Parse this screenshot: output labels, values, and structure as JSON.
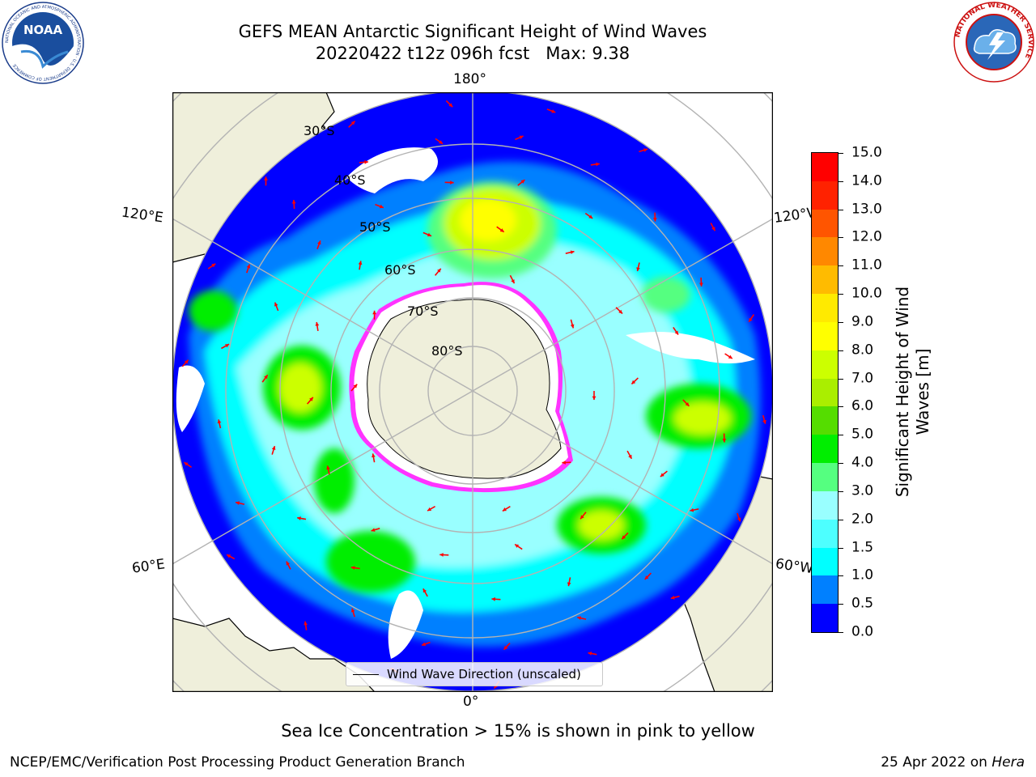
{
  "header": {
    "title_line1": "GEFS MEAN Antarctic Significant Height of Wind Waves",
    "title_line2": "20220422 t12z 096h fcst   Max: 9.38"
  },
  "logos": {
    "left": {
      "name": "noaa-logo",
      "text": "NOAA",
      "ring_text": "NATIONAL OCEANIC AND ATMOSPHERIC ADMINISTRATION · U.S. DEPARTMENT OF COMMERCE"
    },
    "right": {
      "name": "nws-logo",
      "ring_text": "NATIONAL WEATHER SERVICE"
    }
  },
  "map": {
    "projection": "south-polar-stereographic",
    "longitude_labels": [
      "180°",
      "120°E",
      "120°W",
      "60°E",
      "60°W",
      "0°"
    ],
    "latitude_labels": [
      "30°S",
      "40°S",
      "50°S",
      "60°S",
      "70°S",
      "80°S"
    ],
    "colors": {
      "land": "#efefdb",
      "ocean_max": "#0000ff",
      "sea_ice_edge": "#ff33ff",
      "arrows": "#ff0000",
      "grid": "#b3b3b3"
    }
  },
  "legend": {
    "label": "Wind Wave Direction (unscaled)"
  },
  "colorbar": {
    "title_line1": "Significant Height of Wind",
    "title_line2": "Waves [m]",
    "levels": [
      0.0,
      0.5,
      1.0,
      1.5,
      2.0,
      3.0,
      4.0,
      5.0,
      6.0,
      7.0,
      8.0,
      9.0,
      10.0,
      11.0,
      12.0,
      13.0,
      14.0,
      15.0
    ],
    "tick_labels": [
      "0.0",
      "0.5",
      "1.0",
      "1.5",
      "2.0",
      "3.0",
      "4.0",
      "5.0",
      "6.0",
      "7.0",
      "8.0",
      "9.0",
      "10.0",
      "11.0",
      "12.0",
      "13.0",
      "14.0",
      "15.0"
    ],
    "colors": [
      "#0000ff",
      "#0080ff",
      "#00ffff",
      "#4dffff",
      "#99ffff",
      "#55ff80",
      "#00ee00",
      "#55dd00",
      "#aaee00",
      "#ccff00",
      "#ffff00",
      "#ffea00",
      "#ffbb00",
      "#ff8800",
      "#ff5500",
      "#ff2200",
      "#ff0000"
    ]
  },
  "note": "Sea Ice Concentration > 15% is shown in pink to yellow",
  "footer": {
    "left": "NCEP/EMC/Verification Post Processing Product Generation Branch",
    "date": "25 Apr 2022 on",
    "machine": "Hera"
  }
}
